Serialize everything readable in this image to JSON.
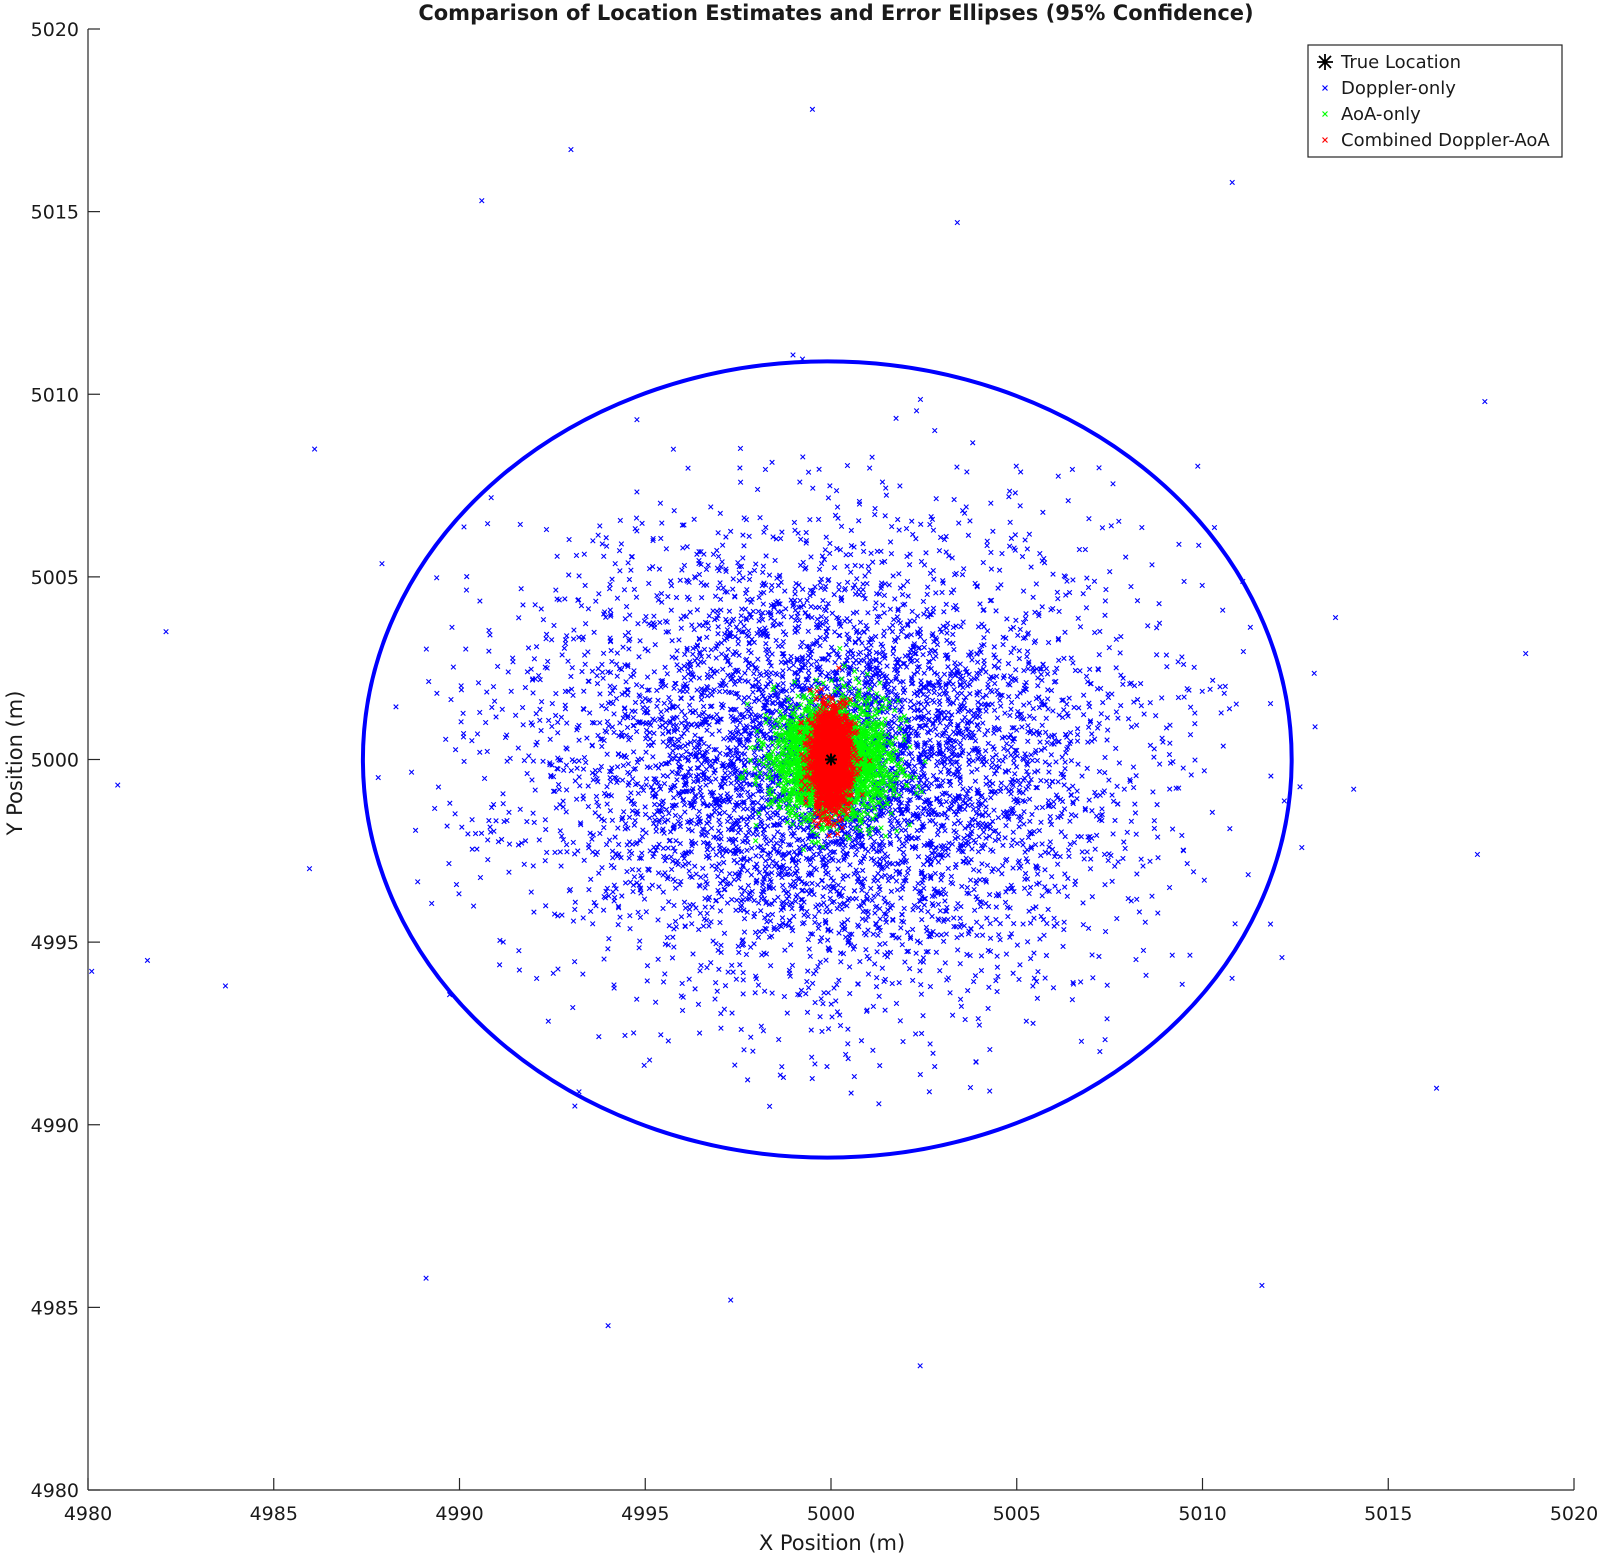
{
  "chart_data": {
    "type": "scatter",
    "title": "Comparison of Location Estimates and Error Ellipses (95% Confidence)",
    "xlabel": "X Position (m)",
    "ylabel": "Y Position (m)",
    "xlim": [
      4980,
      5020
    ],
    "ylim": [
      4980,
      5020
    ],
    "xticks": [
      4980,
      4985,
      4990,
      4995,
      5000,
      5005,
      5010,
      5015,
      5020
    ],
    "yticks": [
      4980,
      4985,
      4990,
      4995,
      5000,
      5005,
      5010,
      5015,
      5020
    ],
    "grid": false,
    "legend_position": "top-right",
    "true_location": {
      "name": "True Location",
      "x": 5000,
      "y": 5000,
      "marker": "asterisk",
      "color": "#000000"
    },
    "series": [
      {
        "name": "Doppler-only",
        "color": "#0000ff",
        "marker": "x",
        "center": [
          5000,
          5000
        ],
        "std": [
          3.95,
          3.0
        ],
        "count": 6000,
        "seed": 17
      },
      {
        "name": "AoA-only",
        "color": "#00ff00",
        "marker": "x",
        "center": [
          5000,
          5000
        ],
        "std": [
          0.75,
          0.75
        ],
        "count": 3000,
        "seed": 29
      },
      {
        "name": "Combined Doppler-AoA",
        "color": "#ff0000",
        "marker": "x",
        "center": [
          5000,
          5000
        ],
        "std": [
          0.25,
          0.65
        ],
        "count": 2500,
        "seed": 43
      }
    ],
    "outliers": [
      {
        "x": 4999.5,
        "y": 5017.8
      },
      {
        "x": 4993.0,
        "y": 5016.7
      },
      {
        "x": 5010.8,
        "y": 5015.8
      },
      {
        "x": 4990.6,
        "y": 5015.3
      },
      {
        "x": 5003.4,
        "y": 5014.7
      },
      {
        "x": 4982.1,
        "y": 5003.5
      },
      {
        "x": 4980.8,
        "y": 4999.3
      },
      {
        "x": 4980.1,
        "y": 4994.2
      },
      {
        "x": 5018.7,
        "y": 5002.9
      },
      {
        "x": 5017.4,
        "y": 4997.4
      },
      {
        "x": 5016.3,
        "y": 4991.0
      },
      {
        "x": 5017.6,
        "y": 5009.8
      },
      {
        "x": 5002.4,
        "y": 4983.4
      },
      {
        "x": 4994.0,
        "y": 4984.5
      },
      {
        "x": 5011.6,
        "y": 4985.6
      },
      {
        "x": 4989.1,
        "y": 4985.8
      },
      {
        "x": 4997.3,
        "y": 4985.2
      },
      {
        "x": 4981.6,
        "y": 4994.5
      },
      {
        "x": 4983.7,
        "y": 4993.8
      },
      {
        "x": 4986.1,
        "y": 5008.5
      }
    ],
    "ellipses": [
      {
        "series": "Doppler-only",
        "color": "#0000ff",
        "center": [
          4999.9,
          5000.0
        ],
        "semi_axes": [
          12.5,
          10.9
        ]
      }
    ]
  }
}
